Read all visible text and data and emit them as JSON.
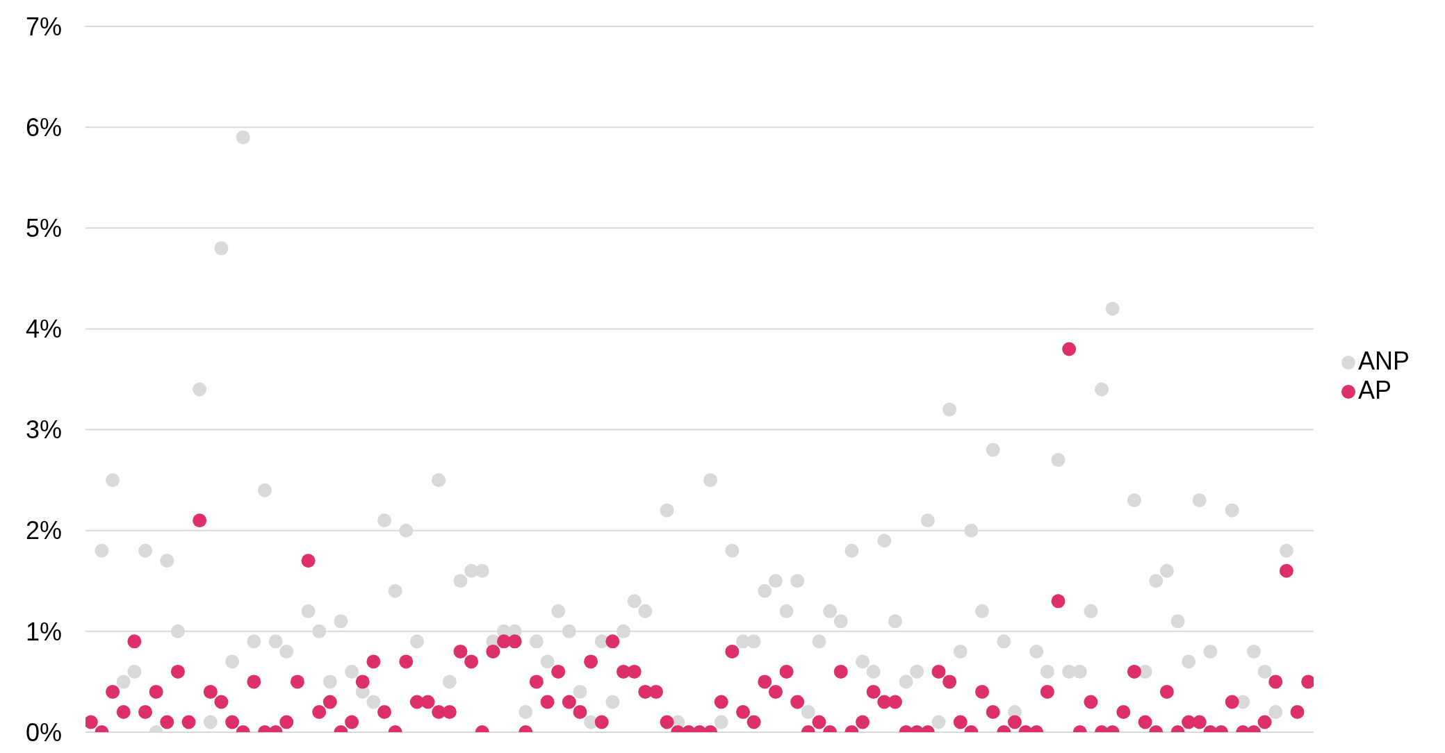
{
  "chart_data": {
    "type": "scatter",
    "categories": [
      null,
      null,
      null,
      null,
      null,
      null,
      null,
      null,
      null,
      null,
      null,
      null,
      null,
      null,
      null,
      null,
      null,
      null,
      null,
      null,
      null,
      null,
      null,
      null,
      null,
      null,
      null,
      null,
      null,
      null,
      null,
      null,
      null,
      null,
      null,
      null,
      null,
      null,
      null,
      null,
      null,
      null,
      null,
      null,
      null,
      null,
      null,
      null,
      null,
      null,
      null,
      null,
      null,
      null,
      null,
      null,
      null,
      null,
      null,
      null,
      null,
      null,
      null,
      null,
      null,
      null,
      null,
      null,
      null,
      null,
      null,
      null,
      null,
      null,
      null,
      null,
      null,
      null,
      null,
      null,
      null,
      null,
      null,
      null,
      null,
      null,
      null,
      null,
      null,
      null,
      null,
      null,
      null,
      null,
      null,
      null,
      null,
      null,
      null,
      null,
      null,
      null,
      null,
      null,
      null,
      null,
      null,
      null,
      null,
      null,
      null,
      null,
      null
    ],
    "series": [
      {
        "name": "ANP",
        "color": "#d9d9d9",
        "values": [
          null,
          1.8,
          2.5,
          0.5,
          0.6,
          1.8,
          0.0,
          1.7,
          1.0,
          null,
          3.4,
          0.1,
          4.8,
          0.7,
          5.9,
          0.9,
          2.4,
          0.9,
          0.8,
          null,
          1.2,
          1.0,
          0.5,
          1.1,
          0.6,
          0.4,
          0.3,
          2.1,
          1.4,
          2.0,
          0.9,
          null,
          2.5,
          0.5,
          1.5,
          1.6,
          1.6,
          0.9,
          1.0,
          1.0,
          0.2,
          0.9,
          0.7,
          1.2,
          1.0,
          0.4,
          0.1,
          0.9,
          0.3,
          1.0,
          1.3,
          1.2,
          null,
          2.2,
          0.1,
          null,
          null,
          2.5,
          0.1,
          1.8,
          0.9,
          0.9,
          1.4,
          1.5,
          1.2,
          1.5,
          0.2,
          0.9,
          1.2,
          1.1,
          1.8,
          0.7,
          0.6,
          1.9,
          1.1,
          0.5,
          0.6,
          2.1,
          0.1,
          3.2,
          0.8,
          2.0,
          1.2,
          2.8,
          0.9,
          0.2,
          null,
          0.8,
          0.6,
          2.7,
          0.6,
          0.6,
          1.2,
          3.4,
          4.2,
          null,
          2.3,
          0.6,
          1.5,
          1.6,
          1.1,
          0.7,
          2.3,
          0.8,
          null,
          2.2,
          0.3,
          0.8,
          0.6,
          0.2,
          1.8,
          null,
          null
        ]
      },
      {
        "name": "AP",
        "color": "#dc2f6b",
        "values": [
          0.1,
          0.0,
          0.4,
          0.2,
          0.9,
          0.2,
          0.4,
          0.1,
          0.6,
          0.1,
          2.1,
          0.4,
          0.3,
          0.1,
          0.0,
          0.5,
          0.0,
          0.0,
          0.1,
          0.5,
          1.7,
          0.2,
          0.3,
          0.0,
          0.1,
          0.5,
          0.7,
          0.2,
          0.0,
          0.7,
          0.3,
          0.3,
          0.2,
          0.2,
          0.8,
          0.7,
          0.0,
          0.8,
          0.9,
          0.9,
          0.0,
          0.5,
          0.3,
          0.6,
          0.3,
          0.2,
          0.7,
          0.1,
          0.9,
          0.6,
          0.6,
          0.4,
          0.4,
          0.1,
          0.0,
          0.0,
          0.0,
          0.0,
          0.3,
          0.8,
          0.2,
          0.1,
          0.5,
          0.4,
          0.6,
          0.3,
          0.0,
          0.1,
          0.0,
          0.6,
          0.0,
          0.1,
          0.4,
          0.3,
          0.3,
          0.0,
          0.0,
          0.0,
          0.6,
          0.5,
          0.1,
          0.0,
          0.4,
          0.2,
          0.0,
          0.1,
          0.0,
          0.0,
          0.4,
          1.3,
          3.8,
          0.0,
          0.3,
          0.0,
          0.0,
          0.2,
          0.6,
          0.1,
          0.0,
          0.4,
          0.0,
          0.1,
          0.1,
          0.0,
          0.0,
          0.3,
          0.0,
          0.0,
          0.1,
          0.5,
          1.6,
          0.2,
          0.5
        ]
      }
    ],
    "ylim": [
      0,
      7
    ],
    "yticks": [
      {
        "value": 0,
        "label": "0%"
      },
      {
        "value": 1,
        "label": "1%"
      },
      {
        "value": 2,
        "label": "2%"
      },
      {
        "value": 3,
        "label": "3%"
      },
      {
        "value": 4,
        "label": "4%"
      },
      {
        "value": 5,
        "label": "5%"
      },
      {
        "value": 6,
        "label": "6%"
      },
      {
        "value": 7,
        "label": "7%"
      }
    ],
    "grid": "y",
    "legend": "right",
    "marker": "circle"
  }
}
